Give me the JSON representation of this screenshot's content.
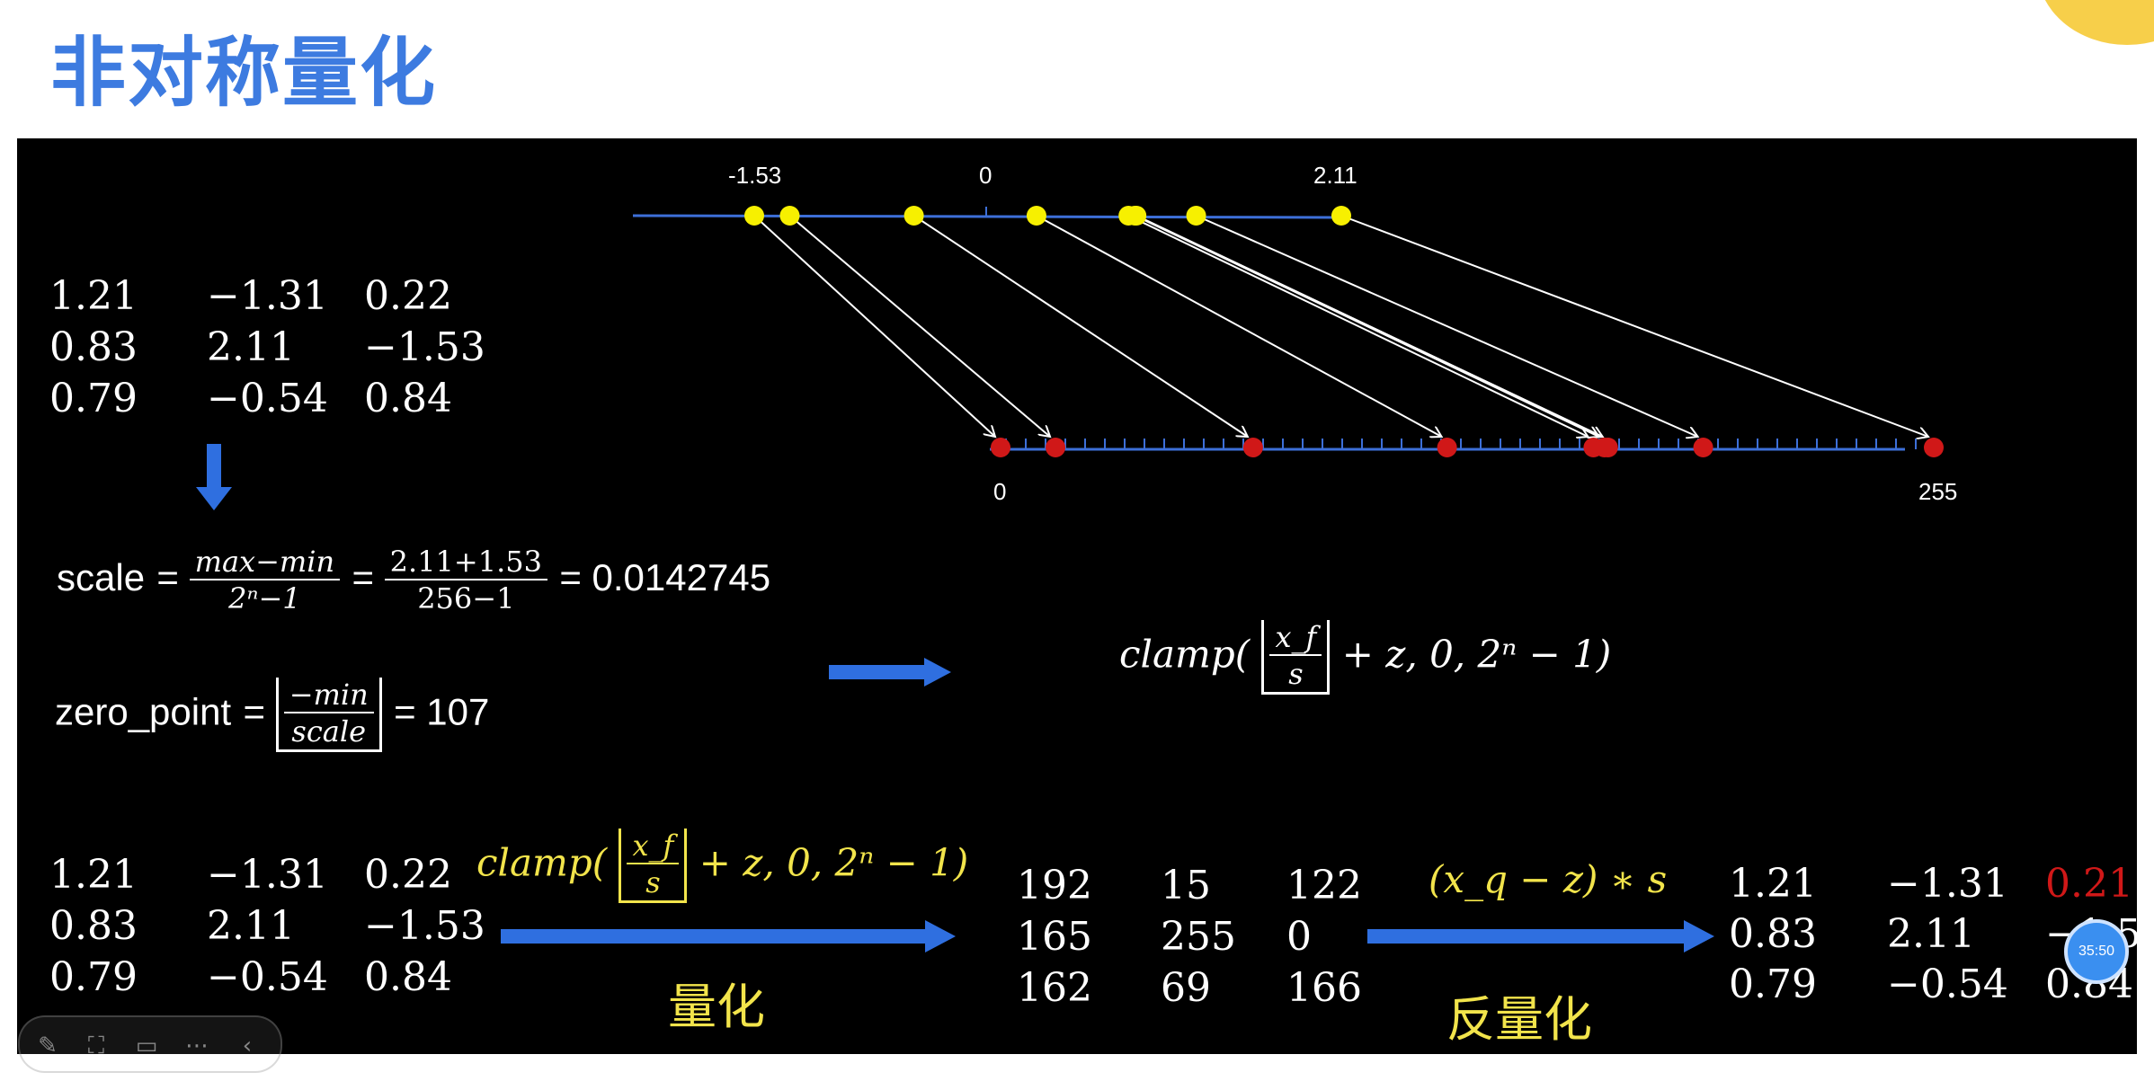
{
  "title": "非对称量化",
  "top_axis": {
    "labels": [
      {
        "text": "-1.53",
        "value": -1.53
      },
      {
        "text": "0",
        "value": 0
      },
      {
        "text": "2.11",
        "value": 2.11
      }
    ],
    "points": [
      -1.53,
      -1.31,
      -0.54,
      0.22,
      0.79,
      0.83,
      0.84,
      1.21,
      2.11
    ]
  },
  "bottom_axis": {
    "labels": [
      {
        "text": "0",
        "value": 0
      },
      {
        "text": "255",
        "value": 255
      }
    ],
    "points": [
      0,
      15,
      69,
      122,
      162,
      165,
      166,
      192,
      255
    ]
  },
  "input_matrix": [
    [
      "1.21",
      "−1.31",
      "0.22"
    ],
    [
      "0.83",
      "2.11",
      "−1.53"
    ],
    [
      "0.79",
      "−0.54",
      "0.84"
    ]
  ],
  "scale_formula": {
    "lhs": "scale",
    "frac1_top": "max−min",
    "frac1_bot": "2ⁿ−1",
    "frac2_top": "2.11+1.53",
    "frac2_bot": "256−1",
    "result": "= 0.0142745"
  },
  "zero_point_formula": {
    "lhs": "zero_point",
    "frac_top": "−min",
    "frac_bot": "scale",
    "result": "107"
  },
  "clamp_formula": "clamp(",
  "clamp_tail": "+ z, 0, 2ⁿ − 1)",
  "clamp_frac_top": "x_f",
  "clamp_frac_bot": "s",
  "quant_label": "量化",
  "dequant_label": "反量化",
  "dequant_formula": "(x_q − z) ∗ s",
  "input_matrix2": [
    [
      "1.21",
      "−1.31",
      "0.22"
    ],
    [
      "0.83",
      "2.11",
      "−1.53"
    ],
    [
      "0.79",
      "−0.54",
      "0.84"
    ]
  ],
  "quant_matrix": [
    [
      "192",
      "15",
      "122"
    ],
    [
      "165",
      "255",
      "0"
    ],
    [
      "162",
      "69",
      "166"
    ]
  ],
  "dequant_matrix": [
    [
      "1.21",
      "−1.31",
      "0.21"
    ],
    [
      "0.83",
      "2.11",
      "−1.5"
    ],
    [
      "0.79",
      "−0.54",
      "0.84"
    ]
  ],
  "timer": "35:50",
  "colors": {
    "title": "#3d7be0",
    "arrow": "#2f6fe0",
    "yellow": "#f2e44b",
    "red": "#d01818",
    "highlight": "#d01818"
  },
  "toolbar_icons": [
    "pen-icon",
    "screenshot-icon",
    "screen-icon",
    "more-icon",
    "collapse-icon"
  ]
}
